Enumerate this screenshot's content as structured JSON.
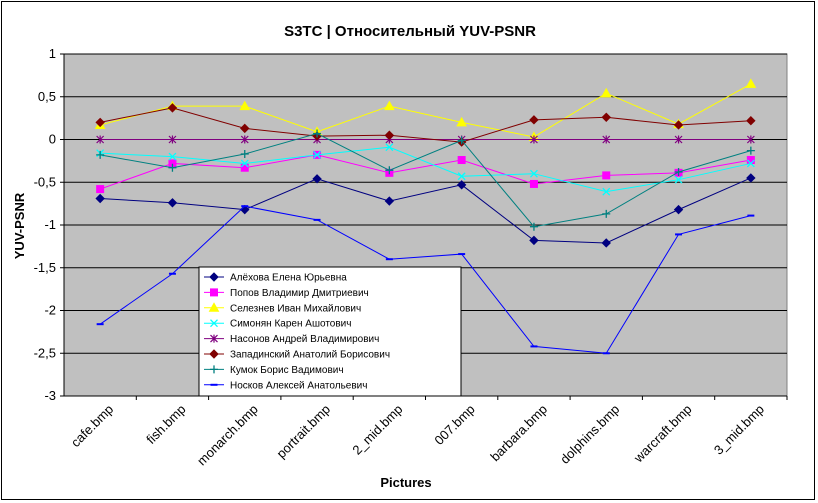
{
  "chart_data": {
    "type": "line",
    "title": "S3TC | Относительный YUV-PSNR",
    "xlabel": "Pictures",
    "ylabel": "YUV-PSNR",
    "ylim": [
      -3,
      1
    ],
    "yticks": [
      "1",
      "0,5",
      "0",
      "-0,5",
      "-1",
      "-1,5",
      "-2",
      "-2,5",
      "-3"
    ],
    "grid": "horizontal",
    "legend_position": "lower-left",
    "plot_background": "#C0C0C0",
    "categories": [
      "cafe.bmp",
      "fish.bmp",
      "monarch.bmp",
      "portrait.bmp",
      "2_mid.bmp",
      "007.bmp",
      "barbara.bmp",
      "dolphins.bmp",
      "warcraft.bmp",
      "3_mid.bmp"
    ],
    "series": [
      {
        "name": "Алёхова Елена Юрьевна",
        "color": "#000080",
        "marker": "diamond",
        "values": [
          -0.69,
          -0.74,
          -0.82,
          -0.46,
          -0.72,
          -0.53,
          -1.18,
          -1.21,
          -0.82,
          -0.45
        ]
      },
      {
        "name": "Попов Владимир Дмитриевич",
        "color": "#FF00FF",
        "marker": "square",
        "values": [
          -0.58,
          -0.28,
          -0.33,
          -0.18,
          -0.39,
          -0.24,
          -0.52,
          -0.42,
          -0.39,
          -0.24
        ]
      },
      {
        "name": "Селезнев Иван Михайлович",
        "color": "#FFFF00",
        "marker": "triangle",
        "values": [
          0.17,
          0.39,
          0.39,
          0.09,
          0.39,
          0.2,
          0.03,
          0.54,
          0.18,
          0.65
        ]
      },
      {
        "name": "Симонян Карен Ашотович",
        "color": "#00FFFF",
        "marker": "x",
        "values": [
          -0.16,
          -0.2,
          -0.28,
          -0.18,
          -0.09,
          -0.43,
          -0.4,
          -0.61,
          -0.47,
          -0.28
        ]
      },
      {
        "name": "Насонов Андрей Владимирович",
        "color": "#800080",
        "marker": "star",
        "values": [
          0.0,
          0.0,
          0.0,
          0.0,
          0.0,
          0.0,
          0.0,
          0.0,
          0.0,
          0.0
        ]
      },
      {
        "name": "Западинский Анатолий Борисович",
        "color": "#800000",
        "marker": "diamond",
        "values": [
          0.2,
          0.37,
          0.13,
          0.04,
          0.05,
          -0.03,
          0.23,
          0.26,
          0.17,
          0.22
        ]
      },
      {
        "name": "Кумок Борис Вадимович",
        "color": "#008080",
        "marker": "plus",
        "values": [
          -0.18,
          -0.33,
          -0.17,
          0.07,
          -0.36,
          -0.01,
          -1.02,
          -0.87,
          -0.38,
          -0.13
        ]
      },
      {
        "name": "Носков Алексей Анатольевич",
        "color": "#0000FF",
        "marker": "dash",
        "values": [
          -2.16,
          -1.57,
          -0.78,
          -0.94,
          -1.4,
          -1.34,
          -2.42,
          -2.5,
          -1.11,
          -0.89
        ]
      }
    ]
  }
}
